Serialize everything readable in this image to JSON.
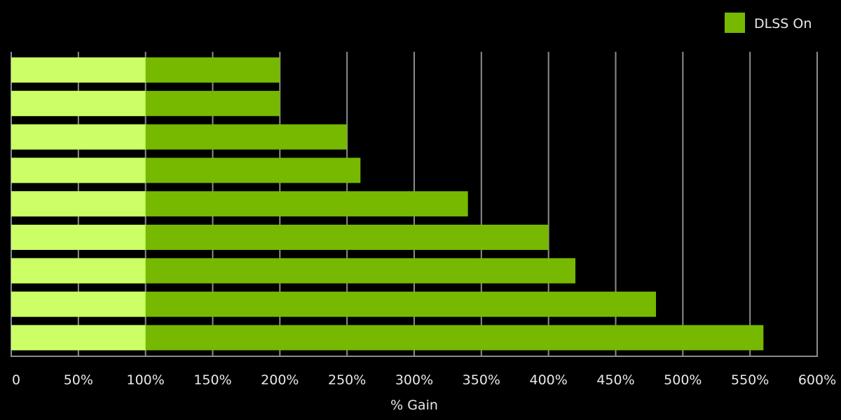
{
  "chart_data": {
    "type": "bar",
    "orientation": "horizontal",
    "stacked_overlay": true,
    "categories": [
      "",
      "",
      "",
      "",
      "",
      "",
      "",
      "",
      ""
    ],
    "series": [
      {
        "name": "DLSS On",
        "color": "#76b900",
        "values": [
          200,
          200,
          250,
          260,
          340,
          400,
          420,
          480,
          560
        ]
      },
      {
        "color": "#ccff66",
        "values": [
          100,
          100,
          100,
          100,
          100,
          100,
          100,
          100,
          100
        ]
      }
    ],
    "xlabel": "% Gain",
    "ylabel": "",
    "xlim": [
      0,
      600
    ],
    "xticks": [
      0,
      50,
      100,
      150,
      200,
      250,
      300,
      350,
      400,
      450,
      500,
      550,
      600
    ],
    "xtick_labels": [
      "0",
      "50%",
      "100%",
      "150%",
      "200%",
      "250%",
      "300%",
      "350%",
      "400%",
      "450%",
      "500%",
      "550%",
      "600%"
    ],
    "grid": "vertical",
    "legend": {
      "position": "top-right",
      "entries": [
        "DLSS On"
      ]
    },
    "background": "#000000",
    "grid_color": "#8c8c8c"
  }
}
